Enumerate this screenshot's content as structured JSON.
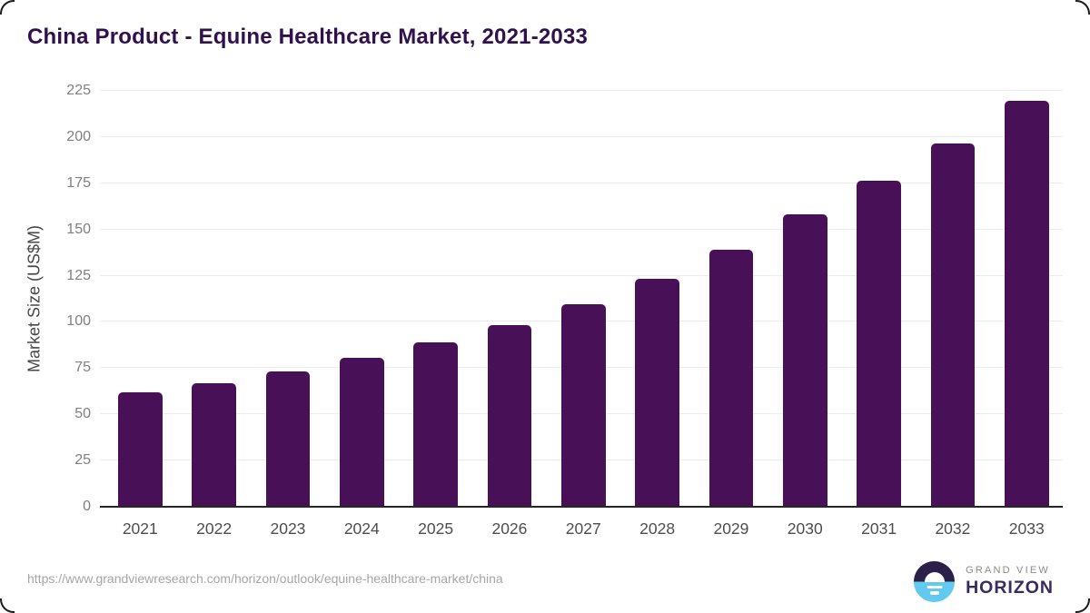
{
  "title": "China Product - Equine Healthcare Market, 2021-2033",
  "footer": {
    "source_url": "https://www.grandviewresearch.com/horizon/outlook/equine-healthcare-market/china"
  },
  "logo": {
    "top_text": "GRAND VIEW",
    "bottom_text": "HORIZON"
  },
  "colors": {
    "bar": "#481157",
    "title_text": "#31114c",
    "logo_dark": "#2b2148",
    "logo_blue": "#62c9f0",
    "gridline": "#ececec",
    "axis_line": "#262626"
  },
  "chart_data": {
    "type": "bar",
    "title": "China Product - Equine Healthcare Market, 2021-2033",
    "categories": [
      "2021",
      "2022",
      "2023",
      "2024",
      "2025",
      "2026",
      "2027",
      "2028",
      "2029",
      "2030",
      "2031",
      "2032",
      "2033"
    ],
    "values": [
      61.4,
      66.3,
      72.8,
      79.9,
      88.5,
      97.6,
      109.3,
      123.0,
      138.7,
      157.5,
      175.7,
      195.8,
      218.9
    ],
    "xlabel": "",
    "ylabel": "Market Size (US$M)",
    "ylim": [
      0,
      225
    ],
    "yticks": [
      0,
      25,
      50,
      75,
      100,
      125,
      150,
      175,
      200,
      225
    ],
    "grid": "horizontal",
    "legend": "none",
    "bar_color": "#481157"
  }
}
